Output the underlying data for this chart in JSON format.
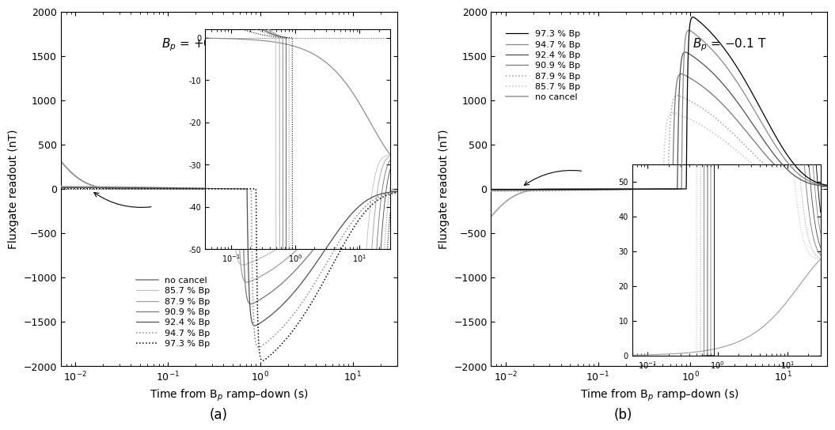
{
  "labels": [
    "no cancel",
    "85.7 % Bp",
    "87.9 % Bp",
    "90.9 % Bp",
    "92.4 % Bp",
    "94.7 % Bp",
    "97.3 % Bp"
  ],
  "xlabel": "Time from B$_p$ ramp–down (s)",
  "ylabel": "Fluxgate readout (nT)",
  "fig_label_a": "(a)",
  "fig_label_b": "(b)",
  "title_a": "$B_p$ = +0.1 T",
  "title_b": "$B_p$ = −0.1 T",
  "ylim": [
    -2000,
    2000
  ],
  "tmin": 0.007,
  "tmax": 30,
  "ca": [
    "#888888",
    "#c0c0c0",
    "#a0a0a0",
    "#787878",
    "#505050",
    "#888888",
    "#000000"
  ],
  "lsa": [
    "-",
    "-",
    "-",
    "-",
    "-",
    ":",
    ":"
  ],
  "lwa": [
    1.2,
    0.9,
    0.9,
    0.9,
    0.9,
    1.1,
    1.1
  ],
  "cb": [
    "#a0a0a0",
    "#c0c0c0",
    "#a0a0a0",
    "#787878",
    "#505050",
    "#888888",
    "#000000"
  ],
  "lsb": [
    "-",
    ":",
    ":",
    "-",
    "-",
    "-",
    "-"
  ],
  "lwb": [
    1.2,
    1.1,
    1.1,
    0.9,
    0.9,
    0.9,
    0.9
  ],
  "cutoffs_a": [
    0.5,
    0.57,
    0.64,
    0.72,
    0.8,
    0.9
  ],
  "peak_amps_a": [
    -900,
    -1100,
    -1350,
    -1600,
    -1850,
    -2000
  ],
  "recovery_taus_a": [
    3.5,
    4.0,
    4.5,
    5.0,
    5.5,
    6.0
  ],
  "cutoffs_b": [
    0.5,
    0.57,
    0.64,
    0.72,
    0.8,
    0.9
  ],
  "peak_amps_b": [
    900,
    1100,
    1350,
    1600,
    1850,
    2000
  ],
  "recovery_taus_b": [
    3.5,
    4.0,
    4.5,
    5.0,
    5.5,
    6.0
  ]
}
